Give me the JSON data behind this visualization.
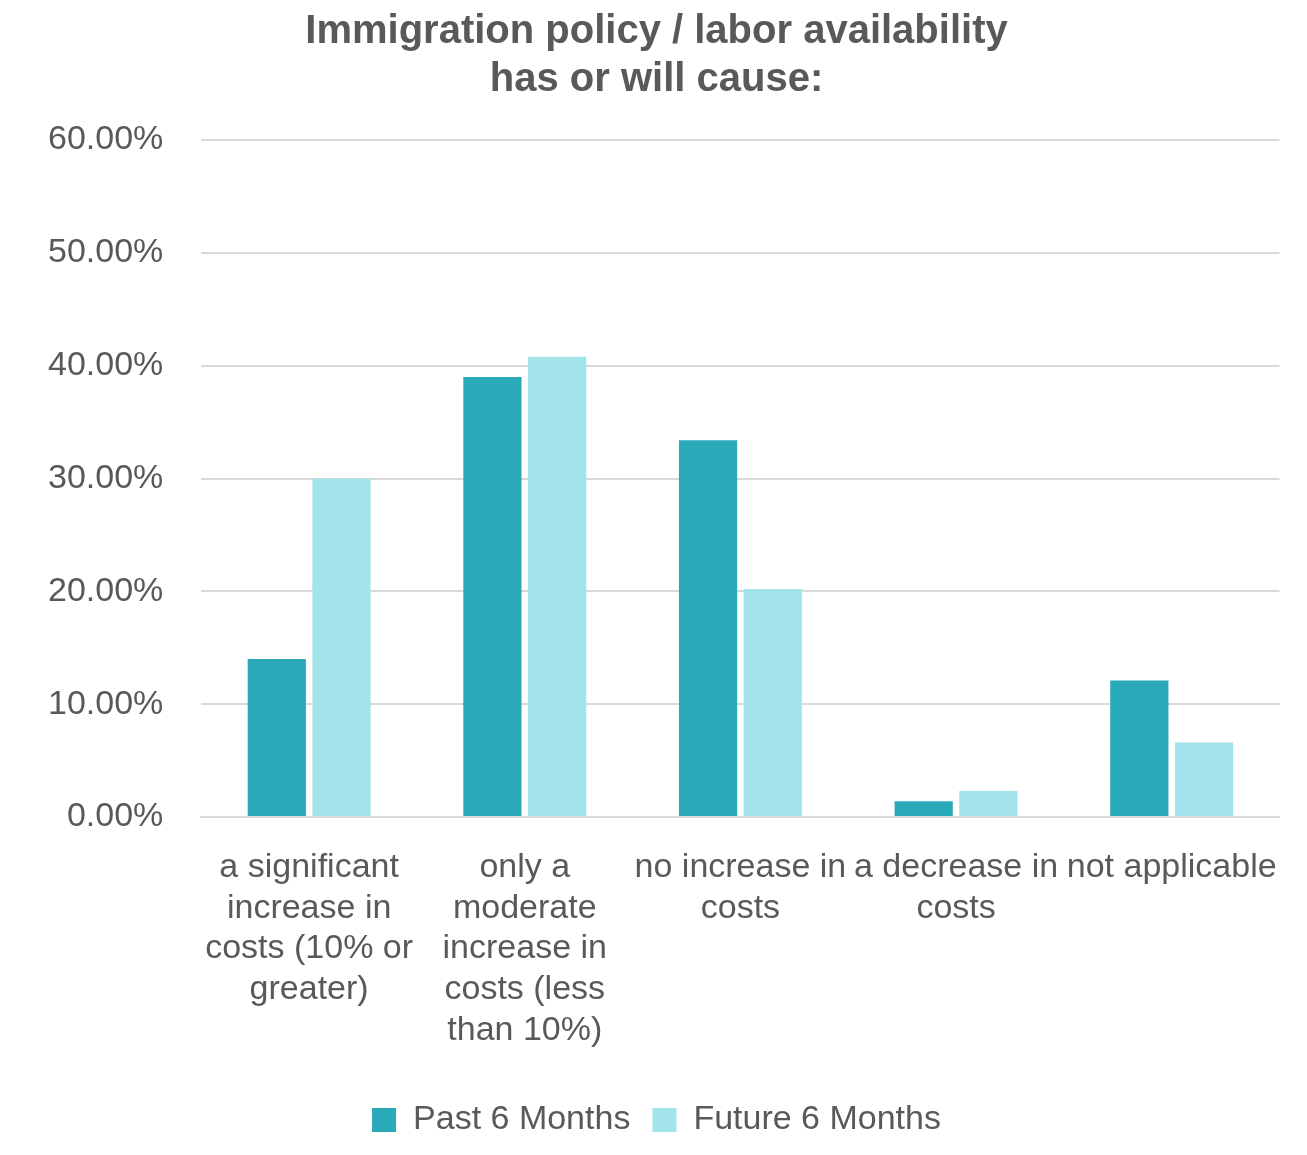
{
  "chart_data": {
    "type": "bar",
    "title": "Immigration policy / labor availability has or will cause:",
    "categories": [
      "a significant increase in costs (10% or greater)",
      "only a moderate increase in costs (less than 10%)",
      "no increase in costs",
      "a decrease in costs",
      "not applicable"
    ],
    "series": [
      {
        "name": "Past 6 Months",
        "color": "#2aaab9",
        "values": [
          14.0,
          39.0,
          33.4,
          1.4,
          12.1
        ]
      },
      {
        "name": "Future 6 Months",
        "color": "#a3e4ea",
        "values": [
          30.0,
          40.8,
          20.2,
          2.3,
          6.6
        ]
      }
    ],
    "ylim": [
      0,
      60
    ],
    "yticks": [
      {
        "value": 0,
        "label": "0.00%"
      },
      {
        "value": 10,
        "label": "10.00%"
      },
      {
        "value": 20,
        "label": "20.00%"
      },
      {
        "value": 30,
        "label": "30.00%"
      },
      {
        "value": 40,
        "label": "40.00%"
      },
      {
        "value": 50,
        "label": "50.00%"
      },
      {
        "value": 60,
        "label": "60.00%"
      }
    ],
    "grid": "y",
    "legend": "bottom"
  }
}
